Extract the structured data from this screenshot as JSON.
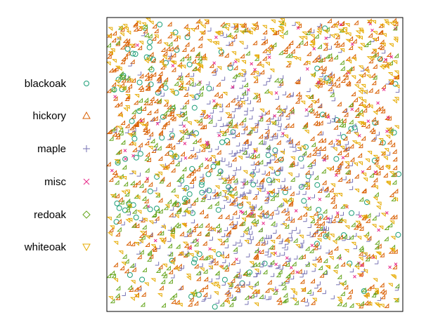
{
  "chart_data": {
    "type": "scatter",
    "title": "",
    "xlabel": "",
    "ylabel": "",
    "xlim": [
      0,
      1
    ],
    "ylim": [
      0,
      1
    ],
    "axes_visible": false,
    "frame": true,
    "legend_placement": "left",
    "series": [
      {
        "name": "blackoak",
        "marker": "circle",
        "color": "#1b9e77",
        "count": 135,
        "density": "concentrated top-left and scattered in middle band"
      },
      {
        "name": "hickory",
        "marker": "triangle-up",
        "color": "#d95f02",
        "count": 703,
        "density": "dense across the whole window, heavy top-left"
      },
      {
        "name": "maple",
        "marker": "plus",
        "color": "#7570b3",
        "count": 514,
        "density": "clusters in center and lower-middle region"
      },
      {
        "name": "misc",
        "marker": "cross",
        "color": "#e7298a",
        "count": 105,
        "density": "sparse, scattered, more on right side"
      },
      {
        "name": "redoak",
        "marker": "diamond",
        "color": "#66a61e",
        "count": 346,
        "density": "scattered throughout, more on left and bottom"
      },
      {
        "name": "whiteoak",
        "marker": "triangle-down",
        "color": "#e6ab02",
        "count": 448,
        "density": "dense along top and right edges, bottom-left"
      }
    ]
  }
}
